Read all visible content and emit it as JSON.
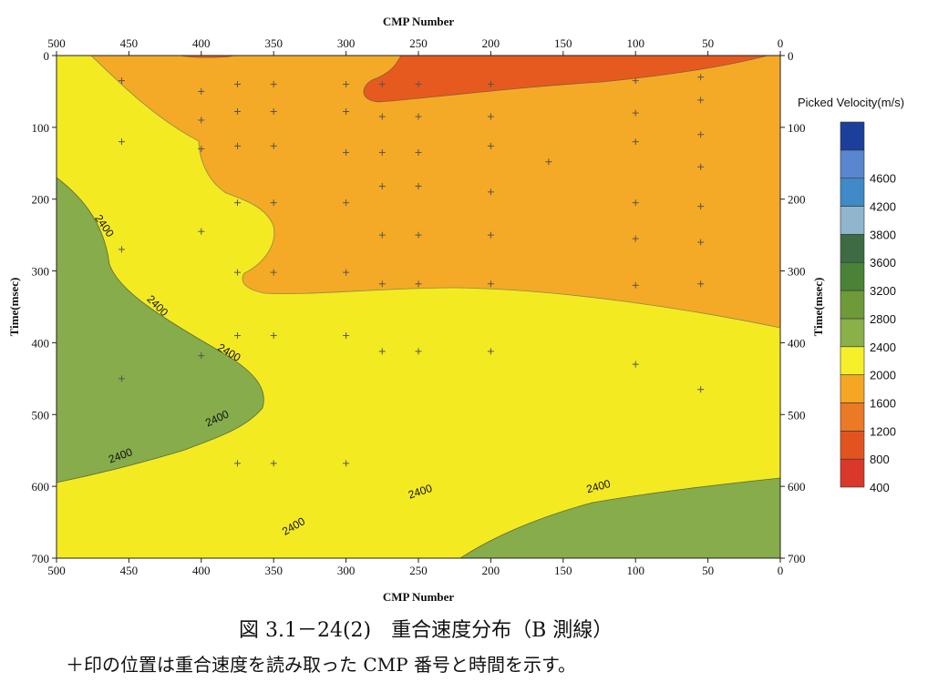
{
  "chart_data": {
    "type": "heatmap",
    "title": "",
    "xlabel_top": "CMP Number",
    "xlabel_bottom": "CMP Number",
    "ylabel_left": "Time(msec)",
    "ylabel_right": "Time(msec)",
    "xlim": [
      500,
      0
    ],
    "ylim": [
      0,
      700
    ],
    "x_ticks": [
      500,
      450,
      400,
      350,
      300,
      250,
      200,
      150,
      100,
      50,
      0
    ],
    "y_ticks": [
      0,
      100,
      200,
      300,
      400,
      500,
      600,
      700
    ],
    "colorbar": {
      "title": "Picked Velocity(m/s)",
      "levels": [
        400,
        800,
        1200,
        1600,
        2000,
        2400,
        2800,
        3200,
        3600,
        3800,
        4200,
        4600
      ],
      "colors": [
        "#d9382a",
        "#e2541f",
        "#ea7a25",
        "#f5a623",
        "#f5f02a",
        "#8ab04a",
        "#6e9a3a",
        "#4a8237",
        "#3f6b44",
        "#8fb6cc",
        "#3f8ac7",
        "#5a86cf",
        "#1b3f9a"
      ]
    },
    "contour_label": "2400",
    "contour_label_positions": [
      {
        "x": 469,
        "y": 240
      },
      {
        "x": 432,
        "y": 352
      },
      {
        "x": 382,
        "y": 418
      },
      {
        "x": 388,
        "y": 510
      },
      {
        "x": 455,
        "y": 562
      },
      {
        "x": 248,
        "y": 612
      },
      {
        "x": 335,
        "y": 660
      },
      {
        "x": 125,
        "y": 605
      }
    ],
    "picked_points": [
      {
        "x": 455,
        "y": 35
      },
      {
        "x": 455,
        "y": 120
      },
      {
        "x": 455,
        "y": 270
      },
      {
        "x": 455,
        "y": 450
      },
      {
        "x": 400,
        "y": 50
      },
      {
        "x": 400,
        "y": 90
      },
      {
        "x": 400,
        "y": 130
      },
      {
        "x": 400,
        "y": 245
      },
      {
        "x": 400,
        "y": 418
      },
      {
        "x": 375,
        "y": 40
      },
      {
        "x": 375,
        "y": 78
      },
      {
        "x": 375,
        "y": 126
      },
      {
        "x": 375,
        "y": 205
      },
      {
        "x": 375,
        "y": 302
      },
      {
        "x": 375,
        "y": 390
      },
      {
        "x": 375,
        "y": 568
      },
      {
        "x": 350,
        "y": 40
      },
      {
        "x": 350,
        "y": 78
      },
      {
        "x": 350,
        "y": 126
      },
      {
        "x": 350,
        "y": 205
      },
      {
        "x": 350,
        "y": 302
      },
      {
        "x": 350,
        "y": 390
      },
      {
        "x": 350,
        "y": 568
      },
      {
        "x": 300,
        "y": 40
      },
      {
        "x": 300,
        "y": 78
      },
      {
        "x": 300,
        "y": 135
      },
      {
        "x": 300,
        "y": 205
      },
      {
        "x": 300,
        "y": 302
      },
      {
        "x": 300,
        "y": 390
      },
      {
        "x": 300,
        "y": 568
      },
      {
        "x": 275,
        "y": 40
      },
      {
        "x": 275,
        "y": 85
      },
      {
        "x": 275,
        "y": 135
      },
      {
        "x": 275,
        "y": 182
      },
      {
        "x": 275,
        "y": 250
      },
      {
        "x": 275,
        "y": 318
      },
      {
        "x": 275,
        "y": 412
      },
      {
        "x": 250,
        "y": 40
      },
      {
        "x": 250,
        "y": 85
      },
      {
        "x": 250,
        "y": 135
      },
      {
        "x": 250,
        "y": 182
      },
      {
        "x": 250,
        "y": 250
      },
      {
        "x": 250,
        "y": 318
      },
      {
        "x": 250,
        "y": 412
      },
      {
        "x": 200,
        "y": 40
      },
      {
        "x": 200,
        "y": 85
      },
      {
        "x": 200,
        "y": 126
      },
      {
        "x": 200,
        "y": 190
      },
      {
        "x": 200,
        "y": 250
      },
      {
        "x": 200,
        "y": 318
      },
      {
        "x": 200,
        "y": 412
      },
      {
        "x": 160,
        "y": 148
      },
      {
        "x": 100,
        "y": 35
      },
      {
        "x": 100,
        "y": 80
      },
      {
        "x": 100,
        "y": 120
      },
      {
        "x": 100,
        "y": 205
      },
      {
        "x": 100,
        "y": 255
      },
      {
        "x": 100,
        "y": 320
      },
      {
        "x": 100,
        "y": 430
      },
      {
        "x": 55,
        "y": 30
      },
      {
        "x": 55,
        "y": 62
      },
      {
        "x": 55,
        "y": 110
      },
      {
        "x": 55,
        "y": 155
      },
      {
        "x": 55,
        "y": 210
      },
      {
        "x": 55,
        "y": 260
      },
      {
        "x": 55,
        "y": 318
      },
      {
        "x": 55,
        "y": 465
      }
    ]
  },
  "caption": {
    "line1": "図 3.1－24(2)　重合速度分布（B 測線）",
    "line2": "＋印の位置は重合速度を読み取った CMP 番号と時間を示す。"
  }
}
